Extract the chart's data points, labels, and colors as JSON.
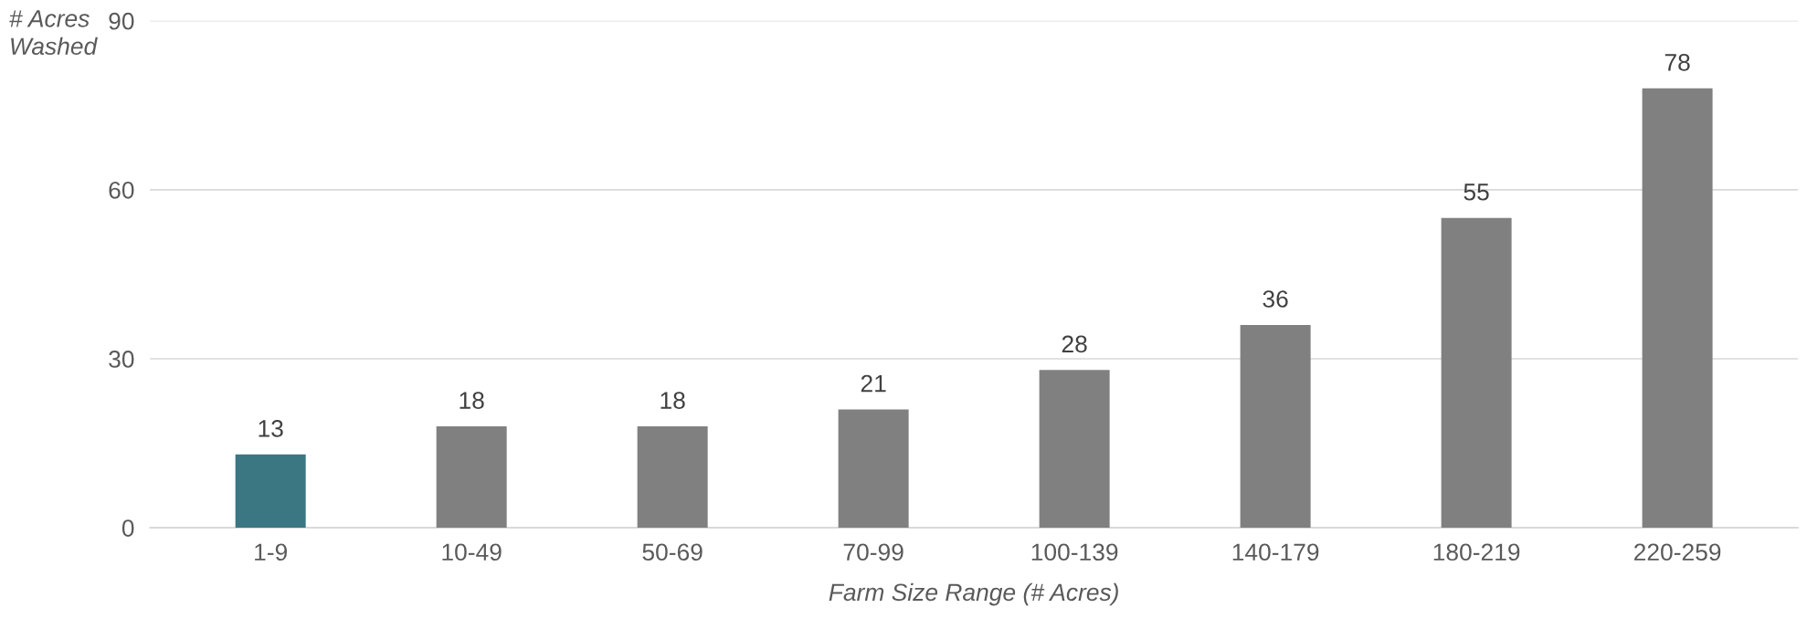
{
  "chart_data": {
    "type": "bar",
    "ylabel": "# Acres\nWashed",
    "xlabel": "Farm Size Range (# Acres)",
    "categories": [
      "1-9",
      "10-49",
      "50-69",
      "70-99",
      "100-139",
      "140-179",
      "180-219",
      "220-259"
    ],
    "values": [
      13,
      18,
      18,
      21,
      28,
      36,
      55,
      78
    ],
    "colors": [
      "#3b7683",
      "#808080",
      "#808080",
      "#808080",
      "#808080",
      "#808080",
      "#808080",
      "#808080"
    ],
    "ylim": [
      0,
      90
    ],
    "yticks": [
      0,
      30,
      60,
      90
    ],
    "grid": "y",
    "data_labels": true,
    "legend": false
  }
}
